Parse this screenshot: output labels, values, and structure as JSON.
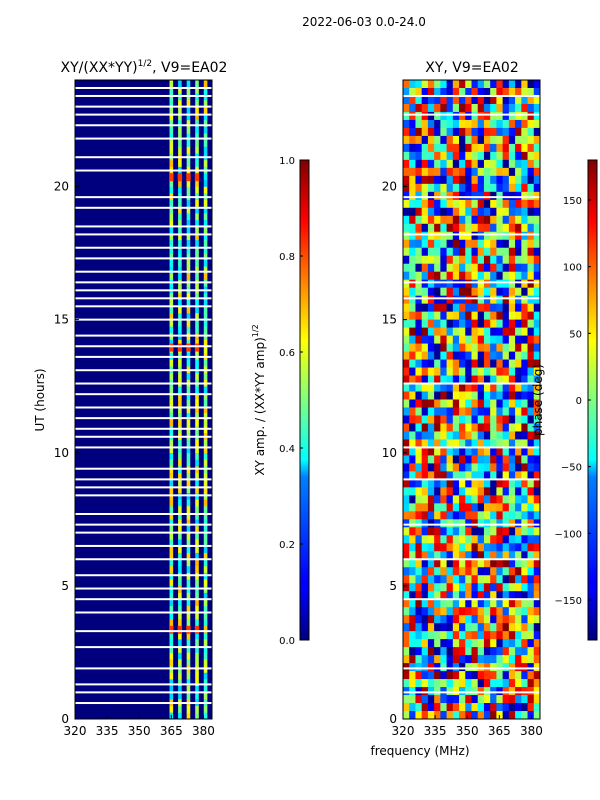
{
  "figure_title": "2022-06-03 0.0-24.0",
  "shared_xlabel": "frequency (MHz)",
  "colors": {
    "background": "#ffffff",
    "axis": "#000000",
    "gap": "#ffffff"
  },
  "chart_data": [
    {
      "type": "heatmap",
      "title_main": "XY/(XX*YY)",
      "title_sup": "1/2",
      "title_suffix": ", V9=EA02",
      "xlabel": "",
      "ylabel": "UT (hours)",
      "xlim": [
        320,
        384
      ],
      "ylim": [
        0,
        24
      ],
      "xticks": [
        320,
        335,
        350,
        365,
        380
      ],
      "xtick_labels": [
        "320",
        "335",
        "350",
        "365",
        "380"
      ],
      "yticks": [
        0,
        5,
        10,
        15,
        20
      ],
      "ytick_labels": [
        "0",
        "5",
        "10",
        "15",
        "20"
      ],
      "colorbar": {
        "label_main": "XY amp. / (XX*YY amp)",
        "label_sup": "1/2",
        "colormap": "jet",
        "range": [
          0.0,
          1.0
        ],
        "ticks": [
          0.0,
          0.2,
          0.4,
          0.6,
          0.8,
          1.0
        ],
        "tick_labels": [
          "0.0",
          "0.2",
          "0.4",
          "0.6",
          "0.8",
          "1.0"
        ]
      },
      "data_gaps_ut_hours": [
        0.6,
        1.0,
        1.3,
        1.9,
        2.7,
        3.3,
        4.0,
        4.5,
        4.9,
        5.4,
        6.0,
        6.5,
        7.0,
        7.3,
        7.7,
        8.4,
        8.7,
        9.0,
        9.4,
        10.2,
        10.6,
        10.9,
        11.3,
        11.7,
        12.2,
        12.6,
        13.1,
        13.6,
        14.0,
        14.4,
        15.0,
        15.5,
        15.8,
        16.1,
        16.4,
        16.8,
        17.3,
        17.7,
        18.2,
        18.5,
        19.2,
        19.6,
        20.6,
        21.1,
        21.8,
        22.3,
        22.7,
        23.0,
        23.4,
        23.7
      ],
      "bright_channels_mhz": [
        365,
        369,
        373,
        377,
        381
      ],
      "hot_ut_hours": [
        3.2,
        13.8,
        20.2
      ]
    },
    {
      "type": "heatmap",
      "title_main": "XY, V9=EA02",
      "title_sup": "",
      "title_suffix": "",
      "xlabel": "frequency (MHz)",
      "ylabel": "",
      "xlim": [
        320,
        384
      ],
      "ylim": [
        0,
        24
      ],
      "xticks": [
        320,
        335,
        350,
        365,
        380
      ],
      "xtick_labels": [
        "320",
        "335",
        "350",
        "365",
        "380"
      ],
      "yticks": [
        0,
        5,
        10,
        15,
        20
      ],
      "ytick_labels": [
        "0",
        "5",
        "10",
        "15",
        "20"
      ],
      "colorbar": {
        "label_main": "phase (deg)",
        "label_sup": "",
        "colormap": "jet",
        "range": [
          -180,
          180
        ],
        "ticks": [
          -150,
          -100,
          -50,
          0,
          50,
          100,
          150
        ],
        "tick_labels": [
          "−150",
          "−100",
          "−50",
          "0",
          "50",
          "100",
          "150"
        ]
      },
      "data_gaps_ut_hours": [
        1.0,
        1.9,
        4.5,
        6.0,
        7.3,
        9.0,
        10.2,
        12.6,
        15.8,
        16.4,
        18.2,
        19.6,
        22.7,
        23.4
      ]
    }
  ]
}
